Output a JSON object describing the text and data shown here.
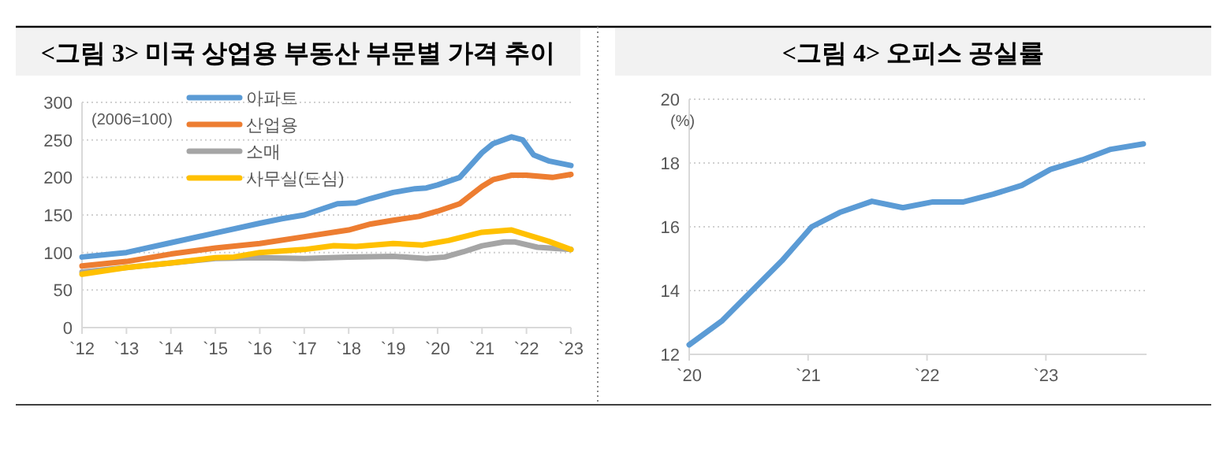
{
  "chart_data": [
    {
      "type": "line",
      "title": "<그림 3> 미국 상업용 부동산 부문별 가격 추이",
      "annotations": [
        "(2006=100)"
      ],
      "xlim": [
        "2012-01-01",
        "2023-01-01"
      ],
      "xticks": [
        {
          "value": "2012",
          "label": "`12"
        },
        {
          "value": "2013",
          "label": "`13"
        },
        {
          "value": "2014",
          "label": "`14"
        },
        {
          "value": "2015",
          "label": "`15"
        },
        {
          "value": "2016",
          "label": "`16"
        },
        {
          "value": "2017",
          "label": "`17"
        },
        {
          "value": "2018",
          "label": "`18"
        },
        {
          "value": "2019",
          "label": "`19"
        },
        {
          "value": "2020",
          "label": "`20"
        },
        {
          "value": "2021",
          "label": "`21"
        },
        {
          "value": "2022",
          "label": "`22"
        },
        {
          "value": "2023",
          "label": "`23"
        }
      ],
      "ylim": [
        0,
        300
      ],
      "yticks": [
        0,
        50,
        100,
        150,
        200,
        250,
        300
      ],
      "grid": "y",
      "legend": "top",
      "series": [
        {
          "name": "아파트",
          "color": "#5b9bd5",
          "x": [
            "2012-01",
            "2013-01",
            "2014-01",
            "2015-01",
            "2016-01",
            "2016-07",
            "2017-01",
            "2017-04",
            "2017-10",
            "2018-03",
            "2018-07",
            "2019-01",
            "2019-07",
            "2019-10",
            "2020-01",
            "2020-07",
            "2021-01",
            "2021-04",
            "2021-09",
            "2021-12",
            "2022-03",
            "2022-07",
            "2023-01"
          ],
          "values": [
            94,
            100,
            113,
            126,
            139,
            145,
            150,
            155,
            165,
            166,
            172,
            180,
            185,
            186,
            190,
            200,
            233,
            245,
            254,
            250,
            230,
            222,
            216
          ]
        },
        {
          "name": "산업용",
          "color": "#ed7d31",
          "x": [
            "2012-01",
            "2013-01",
            "2014-01",
            "2015-01",
            "2016-01",
            "2017-01",
            "2018-01",
            "2018-07",
            "2019-01",
            "2019-08",
            "2020-01",
            "2020-07",
            "2021-01",
            "2021-04",
            "2021-09",
            "2022-01",
            "2022-08",
            "2023-01"
          ],
          "values": [
            82,
            88,
            98,
            106,
            112,
            121,
            130,
            138,
            143,
            148,
            155,
            165,
            188,
            197,
            203,
            203,
            200,
            204
          ]
        },
        {
          "name": "소매",
          "color": "#a5a5a5",
          "x": [
            "2012-01",
            "2013-01",
            "2014-01",
            "2015-01",
            "2016-01",
            "2017-01",
            "2018-01",
            "2019-01",
            "2019-10",
            "2020-03",
            "2020-08",
            "2021-01",
            "2021-07",
            "2021-10",
            "2022-04",
            "2023-01"
          ],
          "values": [
            74,
            80,
            86,
            92,
            93,
            92,
            94,
            95,
            92,
            94,
            101,
            109,
            114,
            114,
            107,
            104
          ]
        },
        {
          "name": "사무실(도심)",
          "color": "#ffc000",
          "x": [
            "2012-01",
            "2013-01",
            "2014-01",
            "2015-01",
            "2015-06",
            "2016-01",
            "2017-01",
            "2017-09",
            "2018-03",
            "2019-01",
            "2019-09",
            "2020-04",
            "2021-01",
            "2021-09",
            "2022-01",
            "2022-07",
            "2023-01"
          ],
          "values": [
            71,
            80,
            86,
            93,
            94,
            100,
            104,
            109,
            108,
            112,
            110,
            116,
            127,
            130,
            124,
            115,
            104
          ]
        }
      ]
    },
    {
      "type": "line",
      "title": "<그림 4> 오피스 공실률",
      "annotations": [
        "(%)"
      ],
      "xlim": [
        "2020-01-01",
        "2023-11-06"
      ],
      "xticks": [
        {
          "value": "2020",
          "label": "`20"
        },
        {
          "value": "2021",
          "label": "`21"
        },
        {
          "value": "2022",
          "label": "`22"
        },
        {
          "value": "2023",
          "label": "`23"
        }
      ],
      "ylim": [
        12,
        20
      ],
      "yticks": [
        12,
        14,
        16,
        18,
        20
      ],
      "grid": "y",
      "series": [
        {
          "color": "#5b9bd5",
          "x": [
            "2020-01-01",
            "2020-04-12",
            "2020-10-12",
            "2021-01-12",
            "2021-04-08",
            "2021-07-16",
            "2021-10-19",
            "2022-01-19",
            "2022-04-23",
            "2022-07-23",
            "2022-10-19",
            "2023-01-15",
            "2023-04-23",
            "2023-07-19",
            "2023-10-27"
          ],
          "values": [
            12.3,
            13.06,
            14.93,
            16.0,
            16.45,
            16.8,
            16.6,
            16.78,
            16.78,
            17.02,
            17.3,
            17.8,
            18.1,
            18.43,
            18.6
          ]
        }
      ]
    }
  ]
}
